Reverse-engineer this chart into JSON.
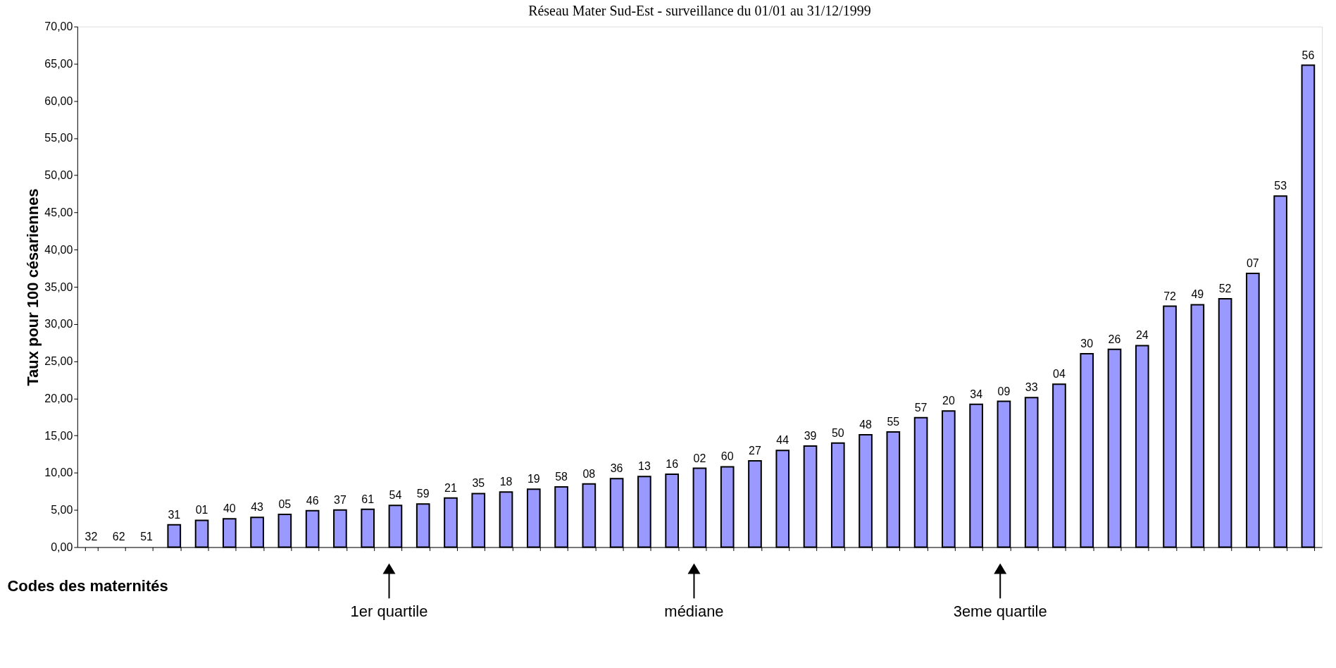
{
  "chart_data": {
    "type": "bar",
    "title": "Réseau Mater Sud-Est - surveillance du 01/01 au 31/12/1999",
    "xlabel": "Codes des maternités",
    "ylabel": "Taux pour 100 césariennes",
    "categories": [
      "32",
      "62",
      "51",
      "31",
      "01",
      "40",
      "43",
      "05",
      "46",
      "37",
      "61",
      "54",
      "59",
      "21",
      "35",
      "18",
      "19",
      "58",
      "08",
      "36",
      "13",
      "16",
      "02",
      "60",
      "27",
      "44",
      "39",
      "50",
      "48",
      "55",
      "57",
      "20",
      "34",
      "09",
      "33",
      "04",
      "30",
      "26",
      "24",
      "72",
      "49",
      "52",
      "07",
      "53",
      "56"
    ],
    "values": [
      0,
      0,
      0,
      3.0,
      3.6,
      3.8,
      4.0,
      4.4,
      4.9,
      5.0,
      5.1,
      5.6,
      5.8,
      6.6,
      7.2,
      7.4,
      7.8,
      8.1,
      8.5,
      9.2,
      9.5,
      9.8,
      10.6,
      10.8,
      11.6,
      13.0,
      13.6,
      14.0,
      15.1,
      15.5,
      17.4,
      18.3,
      19.2,
      19.6,
      20.1,
      21.9,
      26.0,
      26.6,
      27.1,
      32.4,
      32.6,
      33.4,
      36.8,
      47.2,
      64.8
    ],
    "color": "#9999ff",
    "ylim": [
      0,
      70
    ],
    "yticks": [
      {
        "value": 0,
        "label": "0,00"
      },
      {
        "value": 5,
        "label": "5,00"
      },
      {
        "value": 10,
        "label": "10,00"
      },
      {
        "value": 15,
        "label": "15,00"
      },
      {
        "value": 20,
        "label": "20,00"
      },
      {
        "value": 25,
        "label": "25,00"
      },
      {
        "value": 30,
        "label": "30,00"
      },
      {
        "value": 35,
        "label": "35,00"
      },
      {
        "value": 40,
        "label": "40,00"
      },
      {
        "value": 45,
        "label": "45,00"
      },
      {
        "value": 50,
        "label": "50,00"
      },
      {
        "value": 55,
        "label": "55,00"
      },
      {
        "value": 60,
        "label": "60,00"
      },
      {
        "value": 65,
        "label": "65,00"
      },
      {
        "value": 70,
        "label": "70,00"
      }
    ],
    "annotations": [
      "1er  quartile",
      "médiane",
      "3eme quartile"
    ],
    "grid": false,
    "legend": false
  }
}
